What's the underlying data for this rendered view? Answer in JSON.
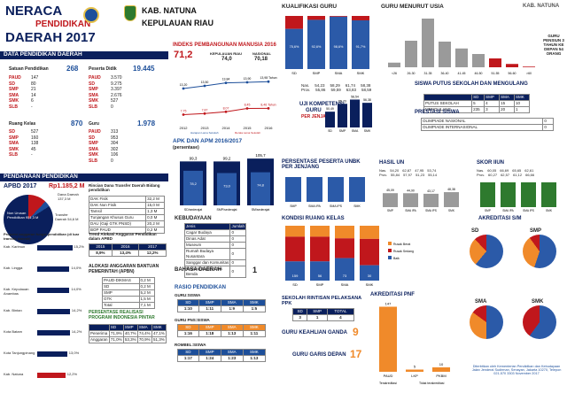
{
  "header": {
    "title1": "NERACA",
    "title2": "PENDIDIKAN",
    "title3": "DAERAH 2017",
    "kab": "KAB. NATUNA",
    "prov": "KEPULAUAN RIAU",
    "corner": "KAB. NATUNA"
  },
  "colors": {
    "red": "#c0171c",
    "navy": "#0a1f5c",
    "blue": "#2b5aa8",
    "gray": "#9a9a9a",
    "orange": "#f08a2a",
    "green": "#2e7a2e"
  },
  "dpd": {
    "title": "DATA PENDIDIKAN DAERAH",
    "satuan": {
      "label": "Satuan Pendidikan",
      "total": "268",
      "rows": [
        [
          "PAUD",
          "147"
        ],
        [
          "SD",
          "80"
        ],
        [
          "SMP",
          "21"
        ],
        [
          "SMA",
          "14"
        ],
        [
          "SMK",
          "6"
        ],
        [
          "SLB",
          "-"
        ]
      ]
    },
    "peserta": {
      "label": "Peserta Didik",
      "total": "19.445",
      "rows": [
        [
          "PAUD",
          "3.570"
        ],
        [
          "SD",
          "9.275"
        ],
        [
          "SMP",
          "3.397"
        ],
        [
          "SMA",
          "2.676"
        ],
        [
          "SMK",
          "527"
        ],
        [
          "SLB",
          "0"
        ]
      ]
    },
    "ruang": {
      "label": "Ruang Kelas",
      "total": "870",
      "rows": [
        [
          "SD",
          "527"
        ],
        [
          "SMP",
          "160"
        ],
        [
          "SMA",
          "138"
        ],
        [
          "SMK",
          "45"
        ],
        [
          "SLB",
          "-"
        ]
      ]
    },
    "guru": {
      "label": "Guru",
      "total": "1.978",
      "rows": [
        [
          "PAUD",
          "313"
        ],
        [
          "SD",
          "953"
        ],
        [
          "SMP",
          "304"
        ],
        [
          "SMA",
          "302"
        ],
        [
          "SMK",
          "106"
        ],
        [
          "SLB",
          "0"
        ]
      ]
    }
  },
  "ipm": {
    "title": "INDEKS PEMBANGUNAN MANUSIA 2016",
    "value": "71,2",
    "kab_label": "KEPULAUAN RIAU",
    "kab_val": "74,0",
    "nas_label": "NASIONAL",
    "nas_val": "70,18",
    "years": [
      "2012",
      "2013",
      "2014",
      "2015",
      "2016"
    ],
    "ls": [
      "13,20",
      "13,50",
      "13,84",
      "13,90",
      "13,98 Tahun"
    ],
    "rls": [
      "7,75",
      "7,87",
      "8,07",
      "8,45",
      "8,46 Tahun"
    ],
    "legend1": "Harapan Lama Sekolah",
    "legend2": "Rerata Lama Sekolah"
  },
  "kualifikasi": {
    "title": "KUALIFIKASI GURU",
    "cats": [
      "SD",
      "SMP",
      "SMA",
      "SMK"
    ],
    "s1": [
      75.6,
      92.6,
      98.6,
      91.7
    ],
    "labels": [
      "75,6%",
      "92,6%",
      "98,6%",
      "91,7%"
    ],
    "legend": [
      "< S1/D4",
      "≥ S1/D4"
    ]
  },
  "usia": {
    "title": "GURU MENURUT USIA",
    "cats": [
      "<26",
      "26-30",
      "31-35",
      "36-40",
      "41-45",
      "46-50",
      "51-55",
      "56-60",
      ">60"
    ],
    "vals": [
      21,
      120,
      220,
      116,
      85,
      60,
      40,
      15,
      3
    ],
    "labels": [
      "",
      "",
      "",
      "11E",
      "",
      "",
      "",
      "",
      ""
    ],
    "note": "GURU PENSIUN 3 TAHUN KE DEPAN 54 ORANG"
  },
  "ukg": {
    "title1": "UJI KOMPETENSI",
    "title2": "GURU",
    "title3": "PER JENJANG",
    "nas_label": "Nas.",
    "prov_label": "Prov.",
    "nas": [
      "54,23",
      "58,29",
      "61,74",
      "58,38"
    ],
    "prov": [
      "55,86",
      "59,59",
      "63,83",
      "58,59"
    ],
    "vals": [
      50.49,
      55.73,
      58.54,
      56.38
    ],
    "labels": [
      "50,49",
      "55,73",
      "58,54",
      "56,38"
    ],
    "cats": [
      "SD",
      "SMP",
      "SMA",
      "SMK"
    ]
  },
  "putus": {
    "title": "SISWA PUTUS SEKOLAH DAN MENGULANG",
    "cols": [
      "SD",
      "SMP",
      "SMA",
      "SMK"
    ],
    "rows": [
      [
        "PUTUS SEKOLAH",
        "5",
        "4",
        "15",
        "10"
      ],
      [
        "MENGULANG",
        "235",
        "3",
        "20",
        "1"
      ]
    ]
  },
  "prestasi": {
    "title": "PRESTASI SISWA",
    "rows": [
      [
        "OLIMPIADE NASIONAL",
        "0"
      ],
      [
        "OLIMPIADE INTERNASIONAL",
        "0"
      ]
    ]
  },
  "apk": {
    "title": "APK DAN APM 2016/2017",
    "sub": "(persentase)",
    "cats": [
      "SD/sederajat",
      "SMP/sederajat",
      "SM/sederajat"
    ],
    "apk": [
      99.3,
      99.2,
      105.7
    ],
    "apm": [
      78.2,
      73.0,
      74.8
    ],
    "apk_l": [
      "99,3",
      "99,2",
      "105,7"
    ],
    "apm_l": [
      "78,2",
      "73,0",
      "74,8"
    ],
    "legend": [
      "APK",
      "APM"
    ]
  },
  "unbk": {
    "title": "PERSENTASE PESERTA UNBK PER JENJANG",
    "cats": [
      "SMP",
      "SMA IPA",
      "SMA IPS",
      "SMK"
    ],
    "vals": [
      100,
      100,
      100,
      100
    ]
  },
  "hasilun": {
    "title": "HASIL UN",
    "nas": "Nas.",
    "prov": "Prov.",
    "nas_v": [
      "54,20",
      "62,87",
      "47,95",
      "53,74"
    ],
    "prov_v": [
      "55,84",
      "57,97",
      "51,23",
      "55,14"
    ],
    "vals": [
      45.09,
      44.9,
      43.17,
      48.38
    ],
    "labels": [
      "45,09",
      "44,90",
      "43,17",
      "48,38"
    ],
    "cats": [
      "SMP",
      "SMA IPA",
      "SMA IPS",
      "SMK"
    ]
  },
  "iiun": {
    "title": "SKOR IIUN",
    "nas_v": [
      "60,05",
      "66,69",
      "65,65",
      "62,61"
    ],
    "prov_v": [
      "60,27",
      "62,57",
      "61,12",
      "66,66"
    ],
    "vals": [
      80,
      80,
      80,
      80
    ],
    "cats": [
      "SMP",
      "SMA IPA",
      "SMA IPS",
      "SMK"
    ]
  },
  "pendanaan": {
    "title": "PENDANAAN PENDIDIKAN",
    "apbd_label": "APBD 2017",
    "apbd_val": "Rp1.185,2 M",
    "nonurusan": "Non Urusan Pendidikan 951,3 M",
    "dana_daerah": "Dana Daerah 137,3 M",
    "transfer": "Transfer Daerah 54,6 M",
    "rincian_title": "Rincian Dana Transfer Daerah Bidang pendidikan",
    "rincian": [
      [
        "DAK Fisik",
        "32,2 M"
      ],
      [
        "DAK Non Fisik",
        "15,0 M"
      ],
      [
        "Tamsil",
        "1,3 M"
      ],
      [
        "Tunjangan Khusus Guru",
        "0,0 M"
      ],
      [
        "DAU (Gaji GTK PNSD)",
        "20,2 M"
      ],
      [
        "BOP PAUD",
        "0,2 M"
      ]
    ]
  },
  "proporsi": {
    "title": "Proporsi anggaran fungsi pendidikan (di luar transfer daerah)",
    "items": [
      [
        "Kab. Karimun",
        "15,2%"
      ],
      [
        "Kab. Lingga",
        "14,0%"
      ],
      [
        "Kab. Kepulauan Anambas",
        "14,0%"
      ],
      [
        "Kab. Bintan",
        "14,2%"
      ],
      [
        "Kota Batam",
        "14,2%"
      ],
      [
        "Kota Tanjungpinang",
        "13,0%"
      ],
      [
        "Kab. Natuna",
        "12,2%"
      ]
    ],
    "vals": [
      15.2,
      14.0,
      14.0,
      14.2,
      14.2,
      13.0,
      12.2
    ]
  },
  "tren": {
    "title": "Trend Alokasi Anggaran Pendidikan dalam APBD",
    "years": [
      "2015",
      "2016",
      "2017"
    ],
    "vals": [
      "8,9%",
      "13,4%",
      "12,2%"
    ]
  },
  "bantuan": {
    "title": "ALOKASI ANGGARAN BANTUAN PEMERINTAH (APBN)",
    "rows": [
      [
        "PAUD-DIKMAS",
        "0,2 M"
      ],
      [
        "SD",
        "0,2 M"
      ],
      [
        "SMP",
        "5,2 M"
      ],
      [
        "GTK",
        "1,5 M"
      ],
      [
        "Total",
        "7,1 M"
      ]
    ]
  },
  "realisasi": {
    "title": "PERSENTASE REALISASI PROGRAM INDONESIA PINTAR",
    "cols": [
      "SD",
      "SMP",
      "SMA",
      "SMK"
    ],
    "rows": [
      [
        "Penerima",
        "71,9%",
        "40,7%",
        "74,4%",
        "47,1%"
      ],
      [
        "Anggaran",
        "71,0%",
        "53,3%",
        "70,9%",
        "51,3%"
      ]
    ]
  },
  "kebudayaan": {
    "title": "KEBUDAYAAN",
    "rows": [
      [
        "Jenis",
        "Jumlah"
      ],
      [
        "Cagar Budaya",
        "0"
      ],
      [
        "Dinas Adat",
        "0"
      ],
      [
        "Museum",
        "0"
      ],
      [
        "Rumah Budaya Nusantara",
        "0"
      ],
      [
        "Sanggar dan Komunitas",
        "0"
      ],
      [
        "Warisan Budaya Tak Benda",
        "0"
      ]
    ]
  },
  "bahasa": {
    "title": "BAHASA DAERAH",
    "val": "1"
  },
  "rasio": {
    "title": "RASIO PENDIDIKAN",
    "guru_siswa": "GURU:SISWA",
    "cols": [
      "SD",
      "SMP",
      "SMA",
      "SMK"
    ],
    "gs": [
      "1:10",
      "1:11",
      "1:9",
      "1:5"
    ],
    "pns_label": "GURU PNS:SISWA",
    "pns": [
      "1:16",
      "1:18",
      "1:13",
      "1:11"
    ],
    "rombel_label": "ROMBEL:SISWA",
    "rombel": [
      "1:17",
      "1:24",
      "1:23",
      "1:13"
    ]
  },
  "kondisi": {
    "title": "KONDISI RUANG KELAS",
    "cats": [
      "SD",
      "SMP",
      "SMA",
      "SMK"
    ],
    "baik": [
      35,
      35,
      41,
      28
    ],
    "ringan": [
      45,
      45,
      36,
      48
    ],
    "berat": [
      20,
      20,
      23,
      24
    ],
    "labels_baik": [
      "159",
      "56",
      "73",
      "30"
    ],
    "legend": [
      "Rusak Berat",
      "Rusak Sedang",
      "Baik"
    ]
  },
  "rintisan": {
    "title": "SEKOLAH RINTISAN PELAKSANA PPK",
    "cols": [
      "SD",
      "SMP",
      "TOTAL"
    ],
    "vals": [
      "3",
      "1",
      "4"
    ]
  },
  "ganda": {
    "title": "GURU KEAHLIAN GANDA",
    "val": "9"
  },
  "garis": {
    "title": "GURU GARIS DEPAN",
    "val": "17"
  },
  "pnf": {
    "title": "AKREDITASI PNF",
    "cats": [
      "PAUD",
      "LKP",
      "PKBM"
    ],
    "vals": [
      147,
      5,
      10
    ],
    "labels": [
      "147",
      "5",
      "10"
    ],
    "legend": [
      "Terakreditasi",
      "Tidak terakreditasi"
    ]
  },
  "akreditasi": {
    "title": "AKREDITASI S/M",
    "pies": [
      "SD",
      "SMP",
      "SMA",
      "SMK"
    ],
    "note": "Diterbitkan oleh Kementerian Pendidikan dan Kebudayaan Jalan Jenderal Sudirman, Senayan, Jakarta 10270, Telepon 021-570 3303 November 2017"
  }
}
